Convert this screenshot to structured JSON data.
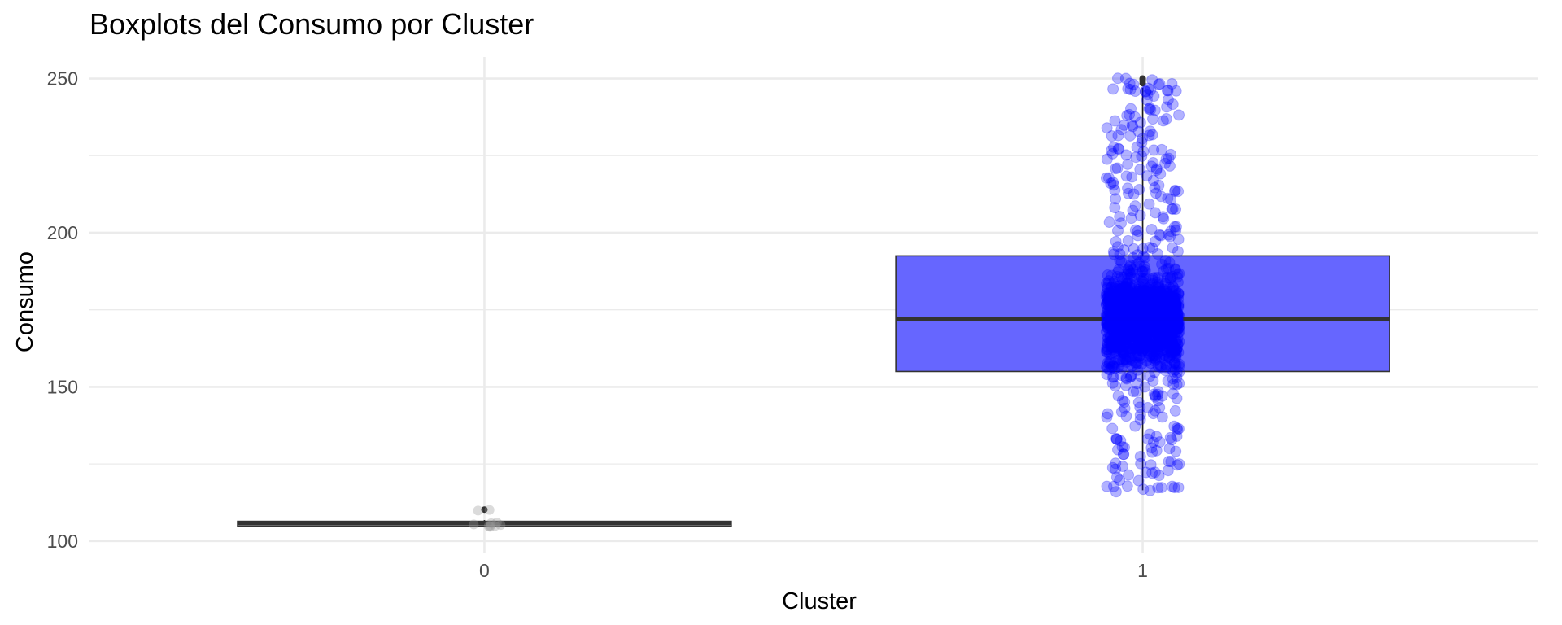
{
  "chart_data": {
    "type": "boxplot",
    "title": "Boxplots del Consumo por Cluster",
    "xlabel": "Cluster",
    "ylabel": "Consumo",
    "categories": [
      "0",
      "1"
    ],
    "y_ticks": [
      "100",
      "150",
      "200",
      "250"
    ],
    "ylim": [
      96,
      257
    ],
    "grid": true,
    "legend": "none",
    "boxes": [
      {
        "cluster": "0",
        "min": 104.5,
        "q1": 104.8,
        "median": 105.6,
        "q3": 106.4,
        "max": 106.8,
        "fill": "#ffffff",
        "outliers": [
          110.2
        ],
        "points": [
          110.1,
          109.9,
          104.8,
          105.2,
          105.0,
          104.6,
          105.4,
          106.0,
          105.8,
          104.9
        ]
      },
      {
        "cluster": "1",
        "min": 116.5,
        "q1": 155,
        "median": 172,
        "q3": 192.5,
        "max": 247,
        "fill": "#6666ff",
        "outliers": [
          248.5,
          249.2,
          249.8,
          250
        ],
        "points_range": [
          115.8,
          250.2
        ],
        "n_points": 1500
      }
    ],
    "point_color": "#0000ff",
    "point_alpha": 0.3
  }
}
